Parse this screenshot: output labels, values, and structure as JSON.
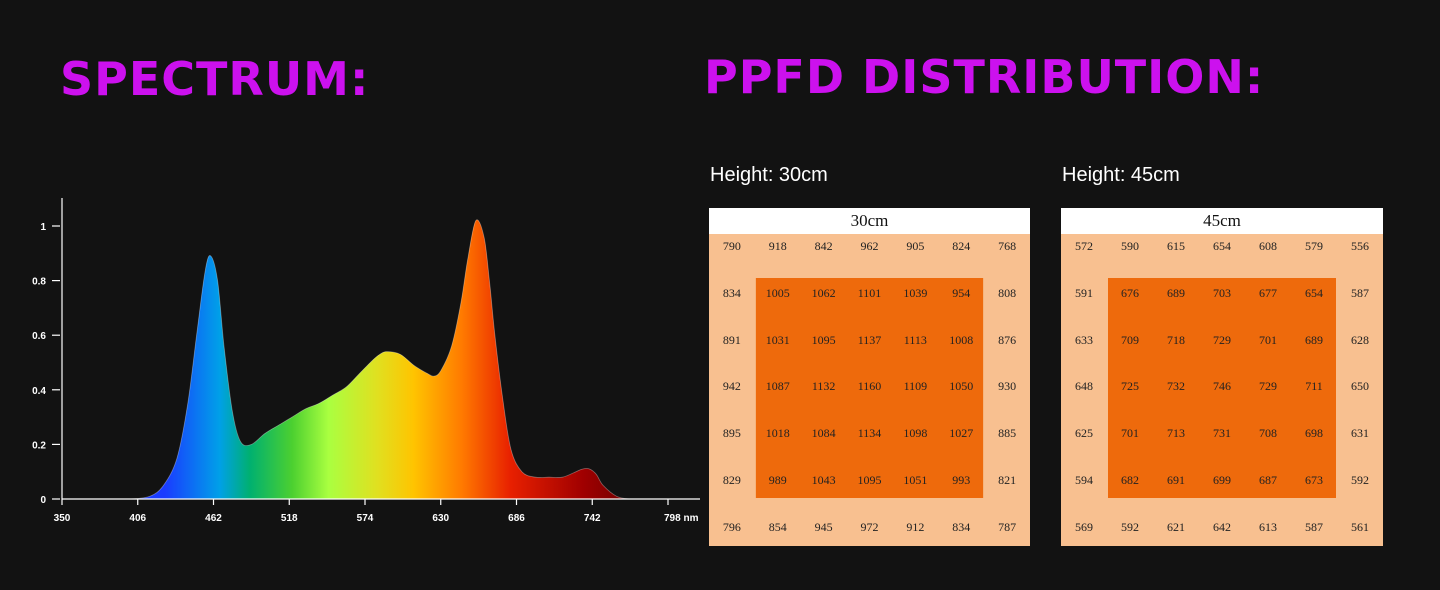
{
  "colors": {
    "heading": "#cc11ee",
    "background": "#121212",
    "ppfd_outer": "#f8c090",
    "ppfd_inner": "#ee6a0c",
    "ppfd_header": "#ffffff",
    "axis": "#ffffff"
  },
  "headings": {
    "spectrum": "SPECTRUM:",
    "ppfd": "PPFD DISTRIBUTION:"
  },
  "chart_data": [
    {
      "type": "area",
      "title": "",
      "x_unit": "nm",
      "xlim": [
        350,
        798
      ],
      "ylim": [
        0,
        1.1
      ],
      "x_ticks": [
        "350",
        "406",
        "462",
        "518",
        "574",
        "630",
        "686",
        "742",
        "798 nm"
      ],
      "y_ticks": [
        "0",
        "0.2",
        "0.4",
        "0.6",
        "0.8",
        "1"
      ],
      "grid": false,
      "series": [
        {
          "x": [
            350,
            380,
            400,
            415,
            425,
            435,
            443,
            450,
            456,
            460,
            465,
            470,
            476,
            482,
            490,
            500,
            510,
            520,
            530,
            540,
            550,
            560,
            570,
            580,
            585,
            590,
            600,
            610,
            620,
            625,
            630,
            638,
            645,
            650,
            656,
            662,
            666,
            670,
            676,
            682,
            690,
            700,
            710,
            720,
            730,
            735,
            740,
            745,
            750,
            760,
            770,
            780,
            798
          ],
          "y": [
            0.0,
            0.0,
            0.0,
            0.01,
            0.05,
            0.15,
            0.35,
            0.62,
            0.84,
            0.89,
            0.8,
            0.55,
            0.32,
            0.21,
            0.2,
            0.24,
            0.27,
            0.3,
            0.33,
            0.35,
            0.38,
            0.41,
            0.46,
            0.51,
            0.53,
            0.54,
            0.53,
            0.49,
            0.46,
            0.45,
            0.47,
            0.56,
            0.72,
            0.88,
            1.02,
            0.96,
            0.8,
            0.6,
            0.36,
            0.18,
            0.1,
            0.08,
            0.08,
            0.08,
            0.1,
            0.11,
            0.11,
            0.09,
            0.05,
            0.01,
            0.0,
            0.0,
            0.0
          ]
        }
      ]
    },
    {
      "type": "heatmap",
      "title": "30cm",
      "rows": [
        [
          790,
          918,
          842,
          962,
          905,
          824,
          768
        ],
        [
          834,
          1005,
          1062,
          1101,
          1039,
          954,
          808
        ],
        [
          891,
          1031,
          1095,
          1137,
          1113,
          1008,
          876
        ],
        [
          942,
          1087,
          1132,
          1160,
          1109,
          1050,
          930
        ],
        [
          895,
          1018,
          1084,
          1134,
          1098,
          1027,
          885
        ],
        [
          829,
          989,
          1043,
          1095,
          1051,
          993,
          821
        ],
        [
          796,
          854,
          945,
          972,
          912,
          834,
          787
        ]
      ]
    },
    {
      "type": "heatmap",
      "title": "45cm",
      "rows": [
        [
          572,
          590,
          615,
          654,
          608,
          579,
          556
        ],
        [
          591,
          676,
          689,
          703,
          677,
          654,
          587
        ],
        [
          633,
          709,
          718,
          729,
          701,
          689,
          628
        ],
        [
          648,
          725,
          732,
          746,
          729,
          711,
          650
        ],
        [
          625,
          701,
          713,
          731,
          708,
          698,
          631
        ],
        [
          594,
          682,
          691,
          699,
          687,
          673,
          592
        ],
        [
          569,
          592,
          621,
          642,
          613,
          587,
          561
        ]
      ]
    }
  ],
  "ppfd_labels": [
    "Height: 30cm",
    "Height: 45cm"
  ]
}
